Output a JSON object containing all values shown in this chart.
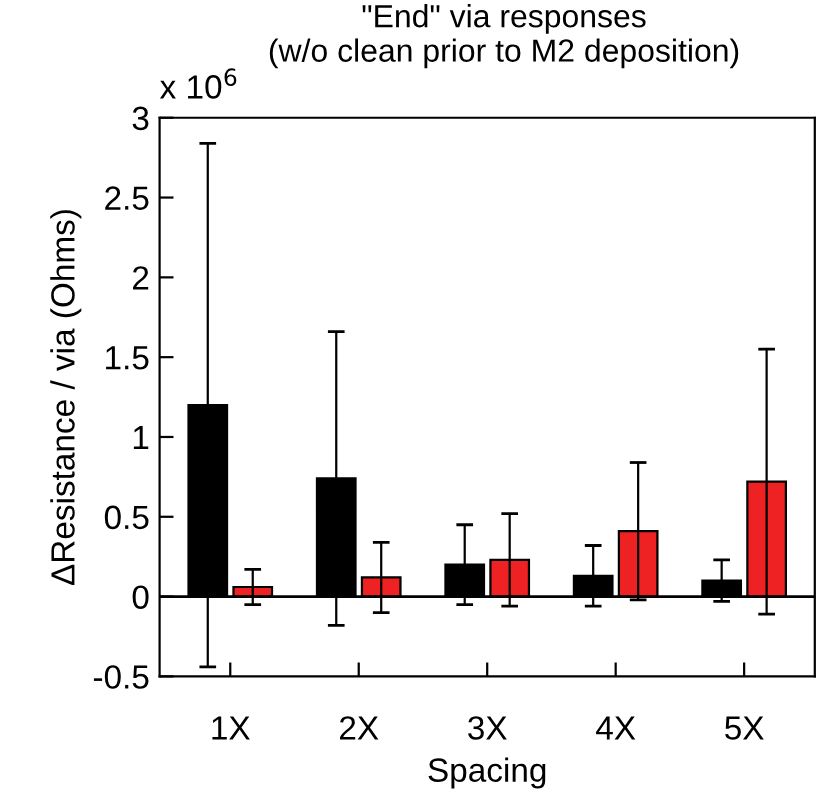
{
  "chart_data": {
    "type": "bar",
    "title": "\"End\" via responses\n(w/o clean prior to M2 deposition)",
    "xlabel": "Spacing",
    "ylabel": "ΔResistance / via (Ohms)",
    "annotations": [
      "x 10$^{6}$"
    ],
    "categories": [
      "1X",
      "2X",
      "3X",
      "4X",
      "5X"
    ],
    "series": [
      {
        "color": "#000000",
        "values": [
          1.2,
          0.74,
          0.2,
          0.13,
          0.1
        ],
        "errors": [
          1.64,
          0.92,
          0.25,
          0.19,
          0.13
        ]
      },
      {
        "color": "#ee2222",
        "values": [
          0.06,
          0.12,
          0.23,
          0.41,
          0.72
        ],
        "errors": [
          0.11,
          0.22,
          0.29,
          0.43,
          0.83
        ]
      }
    ],
    "ylim": [
      -0.5,
      3
    ],
    "yticks": [
      -0.5,
      0,
      0.5,
      1,
      1.5,
      2,
      2.5,
      3
    ],
    "ref_lines": [
      {
        "axis": "y",
        "value": 0,
        "color": "#000000"
      }
    ],
    "legend": false
  }
}
